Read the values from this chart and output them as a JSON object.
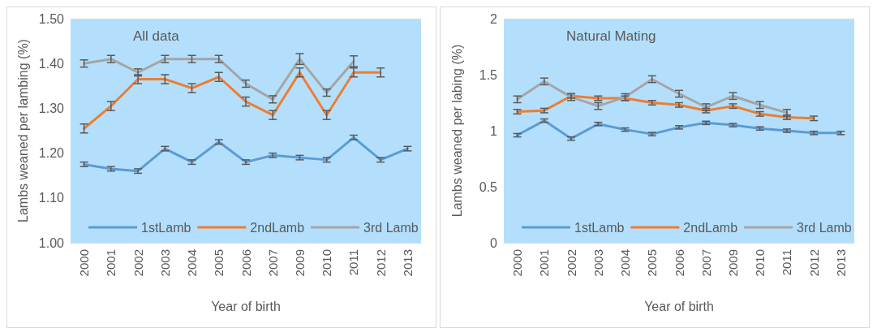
{
  "chart_data": [
    {
      "type": "line",
      "title": "All data",
      "xlabel": "Year of birth",
      "ylabel": "Lambs weaned per lambing (%)",
      "categories": [
        "2000",
        "2001",
        "2002",
        "2003",
        "2004",
        "2005",
        "2006",
        "2007",
        "2009",
        "2010",
        "2011",
        "2012",
        "2013"
      ],
      "ylim": [
        1.0,
        1.5
      ],
      "yticks": [
        {
          "value": 1.0,
          "label": "1.00"
        },
        {
          "value": 1.1,
          "label": "1.10"
        },
        {
          "value": 1.2,
          "label": "1.20"
        },
        {
          "value": 1.3,
          "label": "1.30"
        },
        {
          "value": 1.4,
          "label": "1.40"
        },
        {
          "value": 1.5,
          "label": "1.50"
        }
      ],
      "grid": false,
      "legend": "bottom",
      "marker": "none",
      "line_style": "solid",
      "series": [
        {
          "name": "1stLamb",
          "color": "#5b9bd5",
          "values": [
            1.175,
            1.165,
            1.16,
            1.21,
            1.18,
            1.225,
            1.18,
            1.195,
            1.19,
            1.185,
            1.235,
            1.185,
            1.21
          ],
          "errors": [
            0.005,
            0.005,
            0.005,
            0.005,
            0.005,
            0.005,
            0.005,
            0.005,
            0.005,
            0.005,
            0.005,
            0.005,
            0.005
          ]
        },
        {
          "name": "2ndLamb",
          "color": "#ed7d31",
          "values": [
            1.255,
            1.305,
            1.365,
            1.365,
            1.345,
            1.37,
            1.315,
            1.285,
            1.38,
            1.285,
            1.38,
            1.38,
            null
          ],
          "errors": [
            0.01,
            0.01,
            0.01,
            0.01,
            0.01,
            0.01,
            0.01,
            0.01,
            0.01,
            0.01,
            0.01,
            0.01,
            null
          ]
        },
        {
          "name": "3rd Lamb",
          "color": "#a5a5a5",
          "values": [
            1.4,
            1.41,
            1.38,
            1.41,
            1.41,
            1.41,
            1.355,
            1.32,
            1.41,
            1.335,
            1.405,
            null,
            null
          ],
          "errors": [
            0.008,
            0.008,
            0.008,
            0.008,
            0.008,
            0.008,
            0.008,
            0.008,
            0.012,
            0.008,
            0.012,
            null,
            null
          ]
        }
      ]
    },
    {
      "type": "line",
      "title": "Natural Mating",
      "xlabel": "Year of birth",
      "ylabel": "Lambs weaned per labing (%)",
      "categories": [
        "2000",
        "2001",
        "2002",
        "2003",
        "2004",
        "2005",
        "2006",
        "2007",
        "2009",
        "2010",
        "2011",
        "2012",
        "2013"
      ],
      "ylim": [
        0,
        2
      ],
      "yticks": [
        0,
        0.5,
        1,
        1.5,
        2
      ],
      "grid": false,
      "legend": "bottom",
      "marker": "none",
      "line_style": "solid",
      "series": [
        {
          "name": "1stLamb",
          "color": "#5b9bd5",
          "values": [
            0.96,
            1.09,
            0.93,
            1.06,
            1.01,
            0.97,
            1.03,
            1.07,
            1.05,
            1.02,
            1.0,
            0.98,
            0.98
          ],
          "errors": [
            0.015,
            0.015,
            0.015,
            0.015,
            0.015,
            0.015,
            0.015,
            0.015,
            0.015,
            0.015,
            0.015,
            0.015,
            0.015
          ]
        },
        {
          "name": "2ndLamb",
          "color": "#ed7d31",
          "values": [
            1.17,
            1.18,
            1.31,
            1.29,
            1.29,
            1.25,
            1.23,
            1.18,
            1.22,
            1.15,
            1.12,
            1.11,
            null
          ],
          "errors": [
            0.02,
            0.02,
            0.02,
            0.02,
            0.02,
            0.02,
            0.02,
            0.02,
            0.02,
            0.02,
            0.02,
            0.02,
            null
          ]
        },
        {
          "name": "3rd Lamb",
          "color": "#a5a5a5",
          "values": [
            1.28,
            1.44,
            1.3,
            1.22,
            1.3,
            1.46,
            1.33,
            1.21,
            1.31,
            1.23,
            1.16,
            null,
            null
          ],
          "errors": [
            0.03,
            0.03,
            0.03,
            0.03,
            0.03,
            0.03,
            0.03,
            0.03,
            0.03,
            0.03,
            0.03,
            null,
            null
          ]
        }
      ]
    }
  ]
}
